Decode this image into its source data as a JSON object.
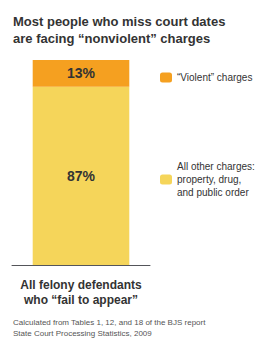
{
  "chart_data": {
    "type": "bar",
    "title": "Most people who miss court dates\nare facing “nonviolent” charges",
    "xlabel": "All felony defendants\nwho “fail to appear”",
    "categories": [
      null
    ],
    "series": [
      {
        "name": "All other charges:\nproperty, drug,\nand public order",
        "color": "#F5D55A",
        "values": [
          87
        ],
        "value_labels": [
          "87%"
        ]
      },
      {
        "name": "“Violent” charges",
        "color": "#F5A020",
        "values": [
          13
        ],
        "value_labels": [
          "13%"
        ]
      }
    ],
    "stacked": true,
    "data_labels": true,
    "ylim": [
      0,
      100
    ],
    "tick_labels": false,
    "grid": false,
    "legend": "right",
    "annotations": [
      "Calculated from Tables 1, 12, and 18 of the BJS report",
      "State Court Processing Statistics, 2009"
    ]
  }
}
